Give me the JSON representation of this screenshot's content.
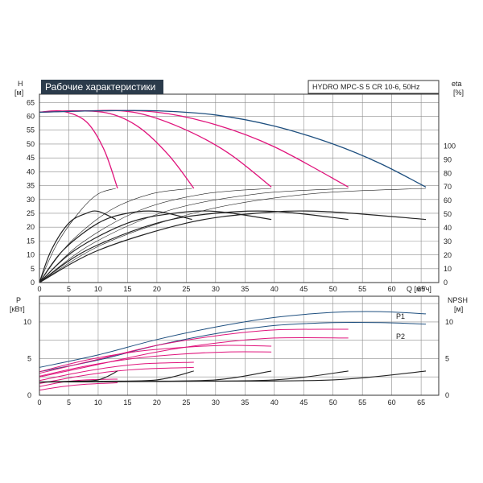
{
  "chart_data": [
    {
      "type": "line",
      "title": "Рабочие характеристики",
      "subtitle": "HYDRO MPC-S 5 CR 10-6, 50Hz",
      "xlabel": "Q [м³/ч]",
      "ylabel_left": "H [м]",
      "ylabel_right": "eta [%]",
      "xlim": [
        0,
        68
      ],
      "ylim_left": [
        0,
        68
      ],
      "ylim_right": [
        0,
        100
      ],
      "x_ticks": [
        0,
        5,
        10,
        15,
        20,
        25,
        30,
        35,
        40,
        45,
        50,
        55,
        60,
        65
      ],
      "y_ticks_left": [
        0,
        5,
        10,
        15,
        20,
        25,
        30,
        35,
        40,
        45,
        50,
        55,
        60,
        65
      ],
      "y_ticks_right": [
        0,
        10,
        20,
        30,
        40,
        50,
        60,
        70,
        80,
        90,
        100
      ],
      "grid": true,
      "series": [
        {
          "kind": "head",
          "color": "#e0147c",
          "x": [
            0,
            4,
            8,
            11,
            13.3
          ],
          "y": [
            61.5,
            61.8,
            58,
            48,
            34
          ]
        },
        {
          "kind": "head",
          "color": "#e0147c",
          "x": [
            0,
            6,
            12,
            17,
            22,
            26.3
          ],
          "y": [
            61.5,
            62,
            61,
            56,
            46,
            34
          ]
        },
        {
          "kind": "head",
          "color": "#e0147c",
          "x": [
            0,
            8,
            16,
            24,
            32,
            39.5
          ],
          "y": [
            61.5,
            62,
            61.5,
            56,
            47,
            34.5
          ]
        },
        {
          "kind": "head",
          "color": "#e0147c",
          "x": [
            0,
            10,
            20,
            30,
            40,
            52.6
          ],
          "y": [
            61.5,
            62,
            61.5,
            57,
            49,
            34.5
          ]
        },
        {
          "kind": "head",
          "color": "#1e4f7f",
          "x": [
            0,
            10,
            20,
            30,
            40,
            50,
            58,
            65.8
          ],
          "y": [
            61.5,
            62,
            62,
            60.5,
            56.5,
            50,
            43,
            34.5
          ]
        },
        {
          "kind": "efficiency",
          "color": "#222222",
          "x": [
            0,
            2,
            5,
            8,
            10,
            13
          ],
          "y": [
            0,
            26,
            48,
            56,
            57.5,
            51
          ]
        },
        {
          "kind": "efficiency",
          "color": "#222222",
          "x": [
            0,
            4,
            10,
            15,
            20,
            26
          ],
          "y": [
            0,
            26,
            48,
            56,
            57.5,
            51
          ]
        },
        {
          "kind": "efficiency",
          "color": "#222222",
          "x": [
            0,
            6,
            15,
            23,
            30,
            39.5
          ],
          "y": [
            0,
            26,
            48,
            56,
            57.5,
            51
          ]
        },
        {
          "kind": "efficiency",
          "color": "#222222",
          "x": [
            0,
            8,
            20,
            30,
            40,
            52.6
          ],
          "y": [
            0,
            26,
            48,
            56,
            57.5,
            51
          ]
        },
        {
          "kind": "efficiency",
          "color": "#222222",
          "x": [
            0,
            10,
            25,
            37,
            48,
            65.8
          ],
          "y": [
            0,
            26,
            48,
            56,
            57.5,
            51
          ]
        },
        {
          "kind": "system",
          "color": "#222222",
          "x": [
            0,
            3,
            7,
            10,
            13
          ],
          "y": [
            0,
            14,
            26,
            32,
            34
          ]
        },
        {
          "kind": "system",
          "color": "#222222",
          "x": [
            0,
            5,
            12,
            19,
            26
          ],
          "y": [
            0,
            14,
            26,
            32,
            34
          ]
        },
        {
          "kind": "system",
          "color": "#222222",
          "x": [
            0,
            7,
            17,
            28,
            39.5
          ],
          "y": [
            0,
            14,
            26,
            32,
            34
          ]
        },
        {
          "kind": "system",
          "color": "#222222",
          "x": [
            0,
            9,
            22,
            37,
            52.6
          ],
          "y": [
            0,
            14,
            26,
            32,
            34
          ]
        },
        {
          "kind": "system",
          "color": "#222222",
          "x": [
            0,
            11,
            28,
            46,
            65.8
          ],
          "y": [
            0,
            14,
            26,
            32,
            34
          ]
        }
      ]
    },
    {
      "type": "line",
      "ylabel_left": "P [кВт]",
      "ylabel_right": "NPSH [м]",
      "xlim": [
        0,
        68
      ],
      "ylim_left": [
        0,
        13.5
      ],
      "ylim_right": [
        0,
        13.5
      ],
      "y_ticks_left": [
        0,
        5,
        10
      ],
      "y_ticks_right": [
        0,
        5,
        10
      ],
      "grid": true,
      "legend": [
        "P1",
        "P2"
      ],
      "series": [
        {
          "kind": "P1",
          "name": "P1",
          "color": "#1e4f7f",
          "x": [
            0,
            10,
            20,
            30,
            40,
            50,
            58,
            65.8
          ],
          "y": [
            3.8,
            5.5,
            7.6,
            9.3,
            10.6,
            11.3,
            11.4,
            11.1
          ]
        },
        {
          "kind": "P2",
          "name": "P2",
          "color": "#1e4f7f",
          "x": [
            0,
            10,
            20,
            30,
            40,
            50,
            58,
            65.8
          ],
          "y": [
            3.2,
            4.8,
            6.8,
            8.4,
            9.5,
            9.9,
            9.9,
            9.7
          ]
        },
        {
          "kind": "power",
          "color": "#e0147c",
          "x": [
            0,
            8,
            16,
            24,
            32,
            39.5
          ],
          "y": [
            3.2,
            4.8,
            5.9,
            6.5,
            6.8,
            6.7
          ]
        },
        {
          "kind": "power",
          "color": "#e0147c",
          "x": [
            0,
            8,
            16,
            24,
            32,
            39.5
          ],
          "y": [
            2.6,
            4.0,
            5.0,
            5.6,
            5.9,
            5.9
          ]
        },
        {
          "kind": "power",
          "color": "#e0147c",
          "x": [
            0,
            10,
            20,
            30,
            40,
            52.6
          ],
          "y": [
            3.0,
            4.9,
            6.8,
            8.1,
            8.9,
            9.0
          ]
        },
        {
          "kind": "power",
          "color": "#e0147c",
          "x": [
            0,
            10,
            20,
            30,
            40,
            52.6
          ],
          "y": [
            2.5,
            4.2,
            5.9,
            7.1,
            7.8,
            7.8
          ]
        },
        {
          "kind": "power",
          "color": "#e0147c",
          "x": [
            0,
            6,
            12,
            18,
            26.3
          ],
          "y": [
            2.0,
            3.0,
            3.8,
            4.3,
            4.5
          ]
        },
        {
          "kind": "power",
          "color": "#e0147c",
          "x": [
            0,
            6,
            12,
            18,
            26.3
          ],
          "y": [
            1.6,
            2.5,
            3.2,
            3.6,
            3.8
          ]
        },
        {
          "kind": "power",
          "color": "#e0147c",
          "x": [
            0,
            4,
            8,
            13.3
          ],
          "y": [
            1.2,
            1.8,
            2.1,
            2.2
          ]
        },
        {
          "kind": "power",
          "color": "#e0147c",
          "x": [
            0,
            4,
            8,
            13.3
          ],
          "y": [
            0.7,
            1.2,
            1.5,
            1.7
          ]
        },
        {
          "kind": "npsh",
          "color": "#222222",
          "x": [
            0,
            5,
            10,
            13.3
          ],
          "y": [
            1.8,
            1.9,
            2.1,
            3.3
          ]
        },
        {
          "kind": "npsh",
          "color": "#222222",
          "x": [
            0,
            10,
            20,
            26.3
          ],
          "y": [
            1.8,
            1.9,
            2.1,
            3.3
          ]
        },
        {
          "kind": "npsh",
          "color": "#222222",
          "x": [
            0,
            15,
            30,
            39.5
          ],
          "y": [
            1.8,
            1.9,
            2.1,
            3.3
          ]
        },
        {
          "kind": "npsh",
          "color": "#222222",
          "x": [
            0,
            20,
            40,
            52.6
          ],
          "y": [
            1.8,
            1.9,
            2.1,
            3.3
          ]
        },
        {
          "kind": "npsh",
          "color": "#222222",
          "x": [
            0,
            25,
            50,
            65.8
          ],
          "y": [
            1.8,
            1.9,
            2.1,
            3.3
          ]
        }
      ]
    }
  ],
  "colors": {
    "title_bg": "#2b3b4b",
    "blue": "#1e4f7f",
    "magenta": "#e0147c",
    "grid": "#8c8c8c"
  }
}
